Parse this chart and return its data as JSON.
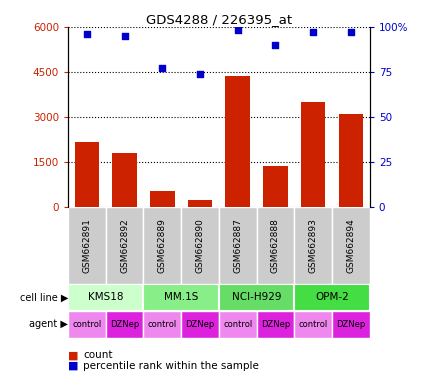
{
  "title": "GDS4288 / 226395_at",
  "samples": [
    "GSM662891",
    "GSM662892",
    "GSM662889",
    "GSM662890",
    "GSM662887",
    "GSM662888",
    "GSM662893",
    "GSM662894"
  ],
  "counts": [
    2150,
    1800,
    520,
    230,
    4350,
    1350,
    3500,
    3100
  ],
  "percentile_ranks": [
    96,
    95,
    77,
    74,
    98,
    90,
    97,
    97
  ],
  "ylim_left": [
    0,
    6000
  ],
  "ylim_right": [
    0,
    100
  ],
  "yticks_left": [
    0,
    1500,
    3000,
    4500,
    6000
  ],
  "ytick_labels_left": [
    "0",
    "1500",
    "3000",
    "4500",
    "6000"
  ],
  "yticks_right": [
    0,
    25,
    50,
    75,
    100
  ],
  "ytick_labels_right": [
    "0",
    "25",
    "50",
    "75",
    "100%"
  ],
  "bar_color": "#cc2200",
  "dot_color": "#0000cc",
  "cell_groups": [
    [
      0,
      2,
      "KMS18"
    ],
    [
      2,
      4,
      "MM.1S"
    ],
    [
      4,
      6,
      "NCI-H929"
    ],
    [
      6,
      8,
      "OPM-2"
    ]
  ],
  "cell_line_colors": [
    "#ccffcc",
    "#ccffcc",
    "#55ee55",
    "#55ee55"
  ],
  "agent_labels": [
    "control",
    "DZNep",
    "control",
    "DZNep",
    "control",
    "DZNep",
    "control",
    "DZNep"
  ],
  "agent_control_color": "#ee88ee",
  "agent_dznep_color": "#dd22dd",
  "sample_label_bg": "#cccccc",
  "legend_count_color": "#cc2200",
  "legend_dot_color": "#0000cc"
}
